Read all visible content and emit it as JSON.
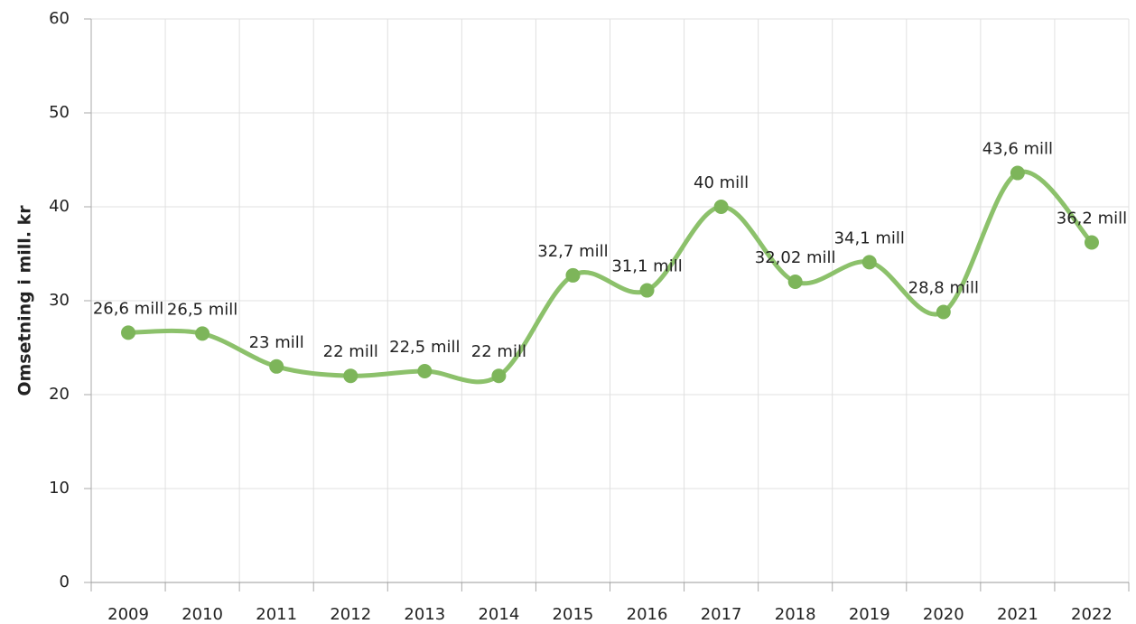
{
  "chart_data": {
    "type": "line",
    "y_label": "Omsetning i mill. kr",
    "categories": [
      "2009",
      "2010",
      "2011",
      "2012",
      "2013",
      "2014",
      "2015",
      "2016",
      "2017",
      "2018",
      "2019",
      "2020",
      "2021",
      "2022"
    ],
    "values": [
      26.6,
      26.5,
      23,
      22,
      22.5,
      22,
      32.7,
      31.1,
      40,
      32.02,
      34.1,
      28.8,
      43.6,
      36.2
    ],
    "value_labels": [
      "26,6 mill",
      "26,5 mill",
      "23 mill",
      "22 mill",
      "22,5 mill",
      "22 mill",
      "32,7 mill",
      "31,1 mill",
      "40 mill",
      "32,02 mill",
      "34,1 mill",
      "28,8 mill",
      "43,6 mill",
      "36,2 mill"
    ],
    "color": "#8cc16b",
    "marker_color": "#7db55a",
    "ylim": [
      0,
      60
    ],
    "yticks": [
      0,
      10,
      20,
      30,
      40,
      50,
      60
    ],
    "grid": true
  }
}
